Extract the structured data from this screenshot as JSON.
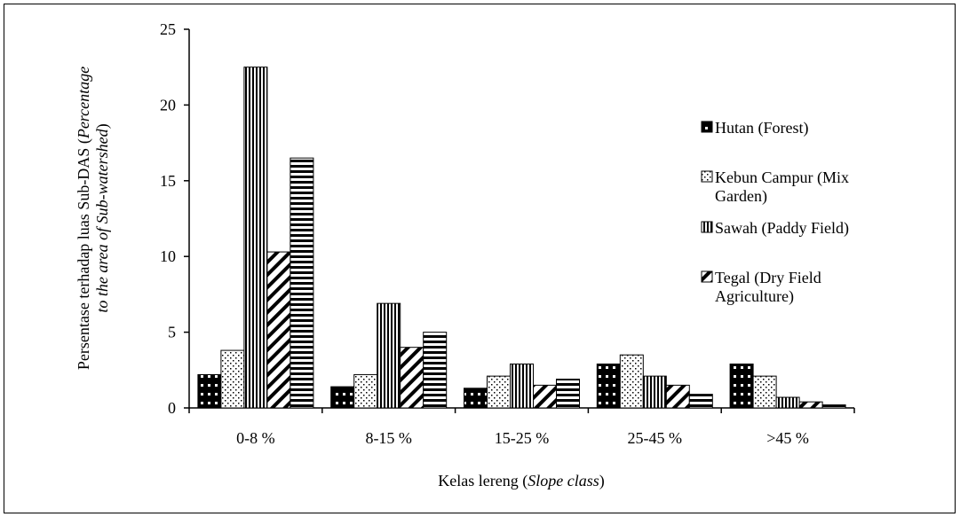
{
  "chart_data": {
    "type": "bar",
    "title": "",
    "xlabel": {
      "plain": "Kelas lereng (",
      "italic": "Slope class",
      "close": ")"
    },
    "ylabel": {
      "line1_plain": "Persentase terhadap luas Sub-DAS (",
      "line1_italic": "Percentage",
      "line2_italic": "to the area of Sub-watershed",
      "line2_close": ")"
    },
    "categories": [
      "0-8 %",
      "8-15 %",
      "15-25 %",
      "25-45 %",
      ">45 %"
    ],
    "ylim": [
      0,
      25
    ],
    "yticks": [
      "0",
      "5",
      "10",
      "15",
      "20",
      "25"
    ],
    "grid": false,
    "legend_position": "right",
    "series": [
      {
        "name": "Hutan (Forest)",
        "name_lines": [
          "Hutan (Forest)"
        ],
        "pattern": "dots-black",
        "values": [
          2.2,
          1.4,
          1.3,
          2.9,
          2.9
        ]
      },
      {
        "name": "Kebun Campur (Mix Garden)",
        "name_lines": [
          "Kebun Campur (Mix",
          "Garden)"
        ],
        "pattern": "dots-white",
        "values": [
          3.8,
          2.2,
          2.1,
          3.5,
          2.1
        ]
      },
      {
        "name": "Sawah (Paddy Field)",
        "name_lines": [
          "Sawah (Paddy Field)"
        ],
        "pattern": "vertical-lines",
        "values": [
          22.5,
          6.9,
          2.9,
          2.1,
          0.7
        ]
      },
      {
        "name": "Tegal (Dry Field Agriculture)",
        "name_lines": [
          "Tegal (Dry Field",
          "Agriculture)"
        ],
        "pattern": "diagonal",
        "values": [
          10.3,
          4.0,
          1.5,
          1.5,
          0.4
        ]
      },
      {
        "name": "",
        "name_lines": [],
        "pattern": "horizontal-lines",
        "values": [
          16.5,
          5.0,
          1.9,
          0.9,
          0.2
        ]
      }
    ]
  }
}
